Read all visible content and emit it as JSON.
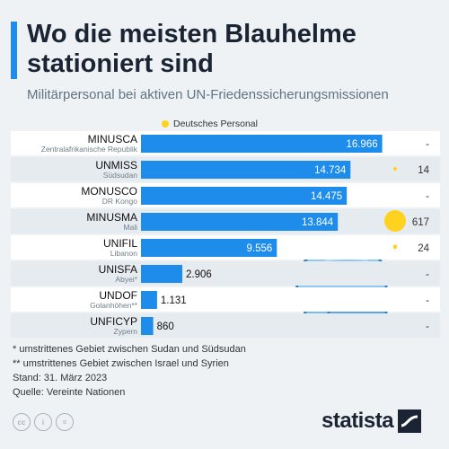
{
  "header": {
    "title": "Wo die meisten Blauhelme stationiert sind",
    "subtitle": "Militärpersonal bei aktiven UN-Friedenssicherungsmissionen"
  },
  "legend": {
    "label": "Deutsches Personal",
    "color": "#ffd21f"
  },
  "colors": {
    "bar": "#1d8ceb",
    "accent": "#1d8ceb",
    "dot": "#ffd21f"
  },
  "chart_data": {
    "type": "bar",
    "orientation": "horizontal",
    "categories": [
      "MINUSCA",
      "UNMISS",
      "MONUSCO",
      "MINUSMA",
      "UNIFIL",
      "UNISFA",
      "UNDOF",
      "UNFICYP"
    ],
    "locations": [
      "Zentralafrikanische Republik",
      "Südsudan",
      "DR Kongo",
      "Mali",
      "Libanon",
      "Abyei*",
      "Golanhöhen**",
      "Zypern"
    ],
    "values": [
      16966,
      14734,
      14475,
      13844,
      9556,
      2906,
      1131,
      860
    ],
    "value_labels": [
      "16.966",
      "14.734",
      "14.475",
      "13.844",
      "9.556",
      "2.906",
      "1.131",
      "860"
    ],
    "german_personnel": [
      null,
      14,
      null,
      617,
      24,
      null,
      null,
      null
    ],
    "german_labels": [
      "-",
      "14",
      "-",
      "617",
      "24",
      "-",
      "-",
      "-"
    ],
    "xlim": [
      0,
      18000
    ]
  },
  "footnotes": [
    "*  umstrittenes Gebiet zwischen Sudan und Südsudan",
    "** umstrittenes Gebiet zwischen Israel und Syrien",
    "Stand: 31. März 2023",
    "Quelle: Vereinte Nationen"
  ],
  "footer": {
    "icons": [
      "cc-icon",
      "person-icon",
      "equals-icon"
    ],
    "icon_glyphs": [
      "cc",
      "i",
      "="
    ],
    "brand": "statista"
  }
}
